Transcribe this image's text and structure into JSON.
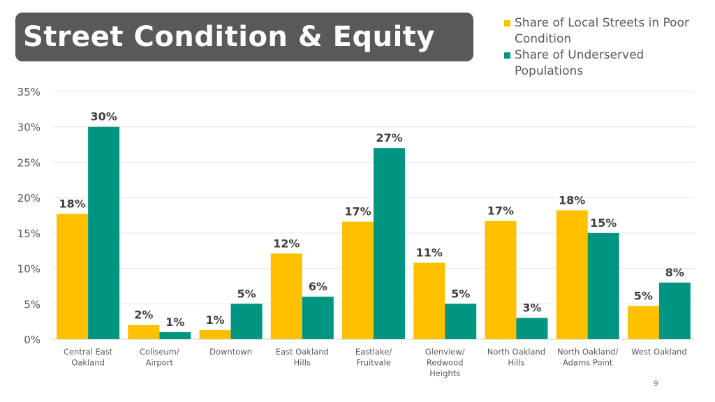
{
  "title": "Street Condition & Equity",
  "page_number": "9",
  "colors": {
    "series1": "#FFC000",
    "series2": "#009580",
    "title_bg": "#595959"
  },
  "chart_data": {
    "type": "bar",
    "categories": [
      [
        "Central East",
        "Oakland"
      ],
      [
        "Coliseum/",
        "Airport"
      ],
      [
        "Downtown"
      ],
      [
        "East Oakland",
        "Hills"
      ],
      [
        "Eastlake/",
        "Fruitvale"
      ],
      [
        "Glenview/",
        "Redwood",
        "Heights"
      ],
      [
        "North Oakland",
        "Hills"
      ],
      [
        "North Oakland/",
        "Adams Point"
      ],
      [
        "West Oakland"
      ]
    ],
    "series": [
      {
        "name": "Share of Local Streets in Poor Condition",
        "values": [
          17.7,
          2.0,
          1.3,
          12.1,
          16.6,
          10.8,
          16.7,
          18.2,
          4.7
        ],
        "labels": [
          "18%",
          "2%",
          "1%",
          "12%",
          "17%",
          "11%",
          "17%",
          "18%",
          "5%"
        ],
        "color": "#FFC000"
      },
      {
        "name": "Share of Underserved Populations",
        "values": [
          30.0,
          1.0,
          5.0,
          6.0,
          27.0,
          5.0,
          3.0,
          15.0,
          8.0
        ],
        "labels": [
          "30%",
          "1%",
          "5%",
          "6%",
          "27%",
          "5%",
          "3%",
          "15%",
          "8%"
        ],
        "color": "#009580"
      }
    ],
    "y_ticks": [
      "0%",
      "5%",
      "10%",
      "15%",
      "20%",
      "25%",
      "30%",
      "35%"
    ],
    "ylim": [
      0,
      35
    ],
    "grid": true,
    "legend_position": "top-right"
  }
}
